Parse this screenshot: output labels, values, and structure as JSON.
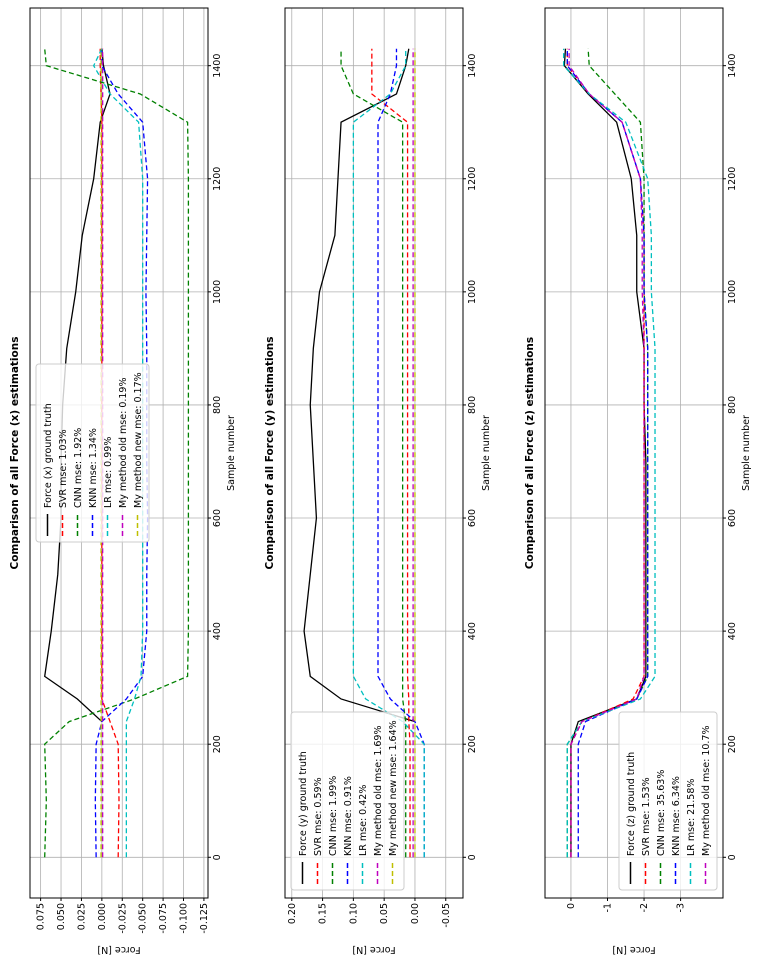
{
  "chart_data": [
    {
      "type": "line",
      "title": "Comparison of all Force (x) estimations",
      "x_label": "Sample number",
      "y_label": "Force [N]",
      "x": [
        0,
        100,
        200,
        240,
        280,
        320,
        400,
        500,
        600,
        700,
        800,
        900,
        1000,
        1100,
        1200,
        1300,
        1350,
        1400,
        1430
      ],
      "xlim": [
        -72,
        1502
      ],
      "xticks": [
        0,
        200,
        400,
        600,
        800,
        1000,
        1200,
        1400
      ],
      "ylim": [
        -0.13,
        0.088
      ],
      "yticks": [
        0.075,
        {
          "value": 0.05,
          "label": "0.050"
        },
        0.025,
        {
          "value": 0,
          "label": "0.000"
        },
        -0.025,
        {
          "value": -0.05,
          "label": "-0.050"
        },
        -0.075,
        {
          "value": -0.1,
          "label": "-0.100"
        },
        -0.125
      ],
      "grid": true,
      "legend": "upper center",
      "series": [
        {
          "name": "Force (x) ground truth",
          "color": "#000000",
          "style": "solid",
          "values": [
            null,
            null,
            null,
            0.0,
            0.03,
            0.07,
            0.062,
            0.054,
            0.05,
            0.05,
            0.048,
            0.043,
            0.032,
            0.024,
            0.01,
            0.002,
            -0.01,
            -0.002,
            0.0
          ]
        },
        {
          "name": "SVR mse: 1.03%",
          "color": "#ff0000",
          "style": "dashed",
          "values": [
            -0.02,
            -0.021,
            -0.02,
            -0.01,
            0.0,
            0.0,
            0.0,
            0.0,
            0.0,
            0.0,
            0.0,
            0.0,
            0.0,
            0.0,
            0.0,
            0.0,
            0.001,
            0.002,
            0.002
          ]
        },
        {
          "name": "CNN mse: 1.92%",
          "color": "#008000",
          "style": "dashed",
          "values": [
            0.07,
            0.068,
            0.07,
            0.04,
            -0.04,
            -0.105,
            -0.106,
            -0.106,
            -0.106,
            -0.106,
            -0.106,
            -0.106,
            -0.106,
            -0.106,
            -0.106,
            -0.105,
            -0.047,
            0.068,
            0.07
          ]
        },
        {
          "name": "KNN mse: 1.34%",
          "color": "#0000ff",
          "style": "dashed",
          "values": [
            0.007,
            0.008,
            0.007,
            0.0,
            -0.03,
            -0.05,
            -0.055,
            -0.055,
            -0.056,
            -0.055,
            -0.055,
            -0.055,
            -0.054,
            -0.055,
            -0.056,
            -0.05,
            -0.02,
            0.0,
            0.0
          ]
        },
        {
          "name": "LR mse: 0.99%",
          "color": "#00bfbf",
          "style": "dashed",
          "values": [
            -0.03,
            -0.03,
            -0.03,
            -0.03,
            -0.04,
            -0.048,
            -0.05,
            -0.05,
            -0.05,
            -0.05,
            -0.05,
            -0.05,
            -0.05,
            -0.05,
            -0.05,
            -0.045,
            -0.01,
            0.01,
            0.0
          ]
        },
        {
          "name": "My method old mse: 0.19%",
          "color": "#bf00bf",
          "style": "dashed",
          "values": [
            -0.001,
            -0.001,
            -0.001,
            -0.001,
            -0.001,
            -0.001,
            -0.001,
            -0.001,
            -0.001,
            -0.001,
            -0.001,
            -0.001,
            -0.001,
            -0.001,
            -0.001,
            -0.001,
            -0.001,
            -0.001,
            -0.001
          ]
        },
        {
          "name": "My method new mse: 0.17%",
          "color": "#bfbf00",
          "style": "dashed",
          "values": [
            0.001,
            0.001,
            0.001,
            0.001,
            0.001,
            0.001,
            0.001,
            0.001,
            0.001,
            0.001,
            0.001,
            0.001,
            0.001,
            0.001,
            0.001,
            0.001,
            0.001,
            0.001,
            0.001
          ]
        }
      ]
    },
    {
      "type": "line",
      "title": "Comparison of all Force (y) estimations",
      "x_label": "Sample number",
      "y_label": "Force [N]",
      "x": [
        0,
        100,
        200,
        240,
        280,
        320,
        400,
        500,
        600,
        700,
        800,
        900,
        1000,
        1100,
        1200,
        1300,
        1350,
        1400,
        1430
      ],
      "xlim": [
        -72,
        1502
      ],
      "xticks": [
        0,
        200,
        400,
        600,
        800,
        1000,
        1200,
        1400
      ],
      "ylim": [
        -0.078,
        0.211
      ],
      "yticks": [
        {
          "value": 0.2,
          "label": "0.20"
        },
        0.15,
        {
          "value": 0.1,
          "label": "0.10"
        },
        0.05,
        {
          "value": 0,
          "label": "0.00"
        },
        -0.05
      ],
      "grid": true,
      "legend": "upper left",
      "series": [
        {
          "name": "Force (y) ground truth",
          "color": "#000000",
          "style": "solid",
          "values": [
            null,
            null,
            null,
            0.0,
            0.12,
            0.17,
            0.18,
            0.17,
            0.16,
            0.165,
            0.17,
            0.165,
            0.155,
            0.13,
            0.125,
            0.12,
            0.03,
            0.015,
            0.01
          ]
        },
        {
          "name": "SVR mse: 0.59%",
          "color": "#ff0000",
          "style": "dashed",
          "values": [
            0.008,
            0.008,
            0.008,
            0.01,
            0.01,
            0.012,
            0.012,
            0.012,
            0.012,
            0.012,
            0.012,
            0.012,
            0.012,
            0.012,
            0.012,
            0.012,
            0.07,
            0.07,
            0.07
          ]
        },
        {
          "name": "CNN mse: 1.99%",
          "color": "#008000",
          "style": "dashed",
          "values": [
            0.015,
            0.015,
            0.015,
            0.015,
            0.02,
            0.02,
            0.02,
            0.02,
            0.02,
            0.02,
            0.02,
            0.02,
            0.02,
            0.02,
            0.02,
            0.02,
            0.1,
            0.12,
            0.12
          ]
        },
        {
          "name": "KNN mse: 0.91%",
          "color": "#0000ff",
          "style": "dashed",
          "values": [
            -0.015,
            -0.015,
            -0.015,
            0.0,
            0.04,
            0.06,
            0.06,
            0.06,
            0.06,
            0.06,
            0.06,
            0.06,
            0.06,
            0.06,
            0.06,
            0.06,
            0.04,
            0.03,
            0.03
          ]
        },
        {
          "name": "LR mse: 0.42%",
          "color": "#00bfbf",
          "style": "dashed",
          "values": [
            -0.015,
            -0.015,
            -0.015,
            0.02,
            0.08,
            0.1,
            0.1,
            0.1,
            0.1,
            0.1,
            0.1,
            0.1,
            0.1,
            0.1,
            0.1,
            0.1,
            0.04,
            0.015,
            0.015
          ]
        },
        {
          "name": "My method old mse: 1.69%",
          "color": "#bf00bf",
          "style": "dashed",
          "values": [
            0.003,
            0.003,
            0.003,
            0.003,
            0.003,
            0.003,
            0.003,
            0.003,
            0.003,
            0.003,
            0.003,
            0.003,
            0.003,
            0.003,
            0.003,
            0.003,
            0.003,
            0.003,
            0.003
          ]
        },
        {
          "name": "My method new mse: 1.64%",
          "color": "#bfbf00",
          "style": "dashed",
          "values": [
            0.0,
            0.0,
            0.0,
            0.0,
            0.0,
            0.0,
            0.0,
            0.0,
            0.0,
            0.0,
            0.0,
            0.0,
            0.0,
            0.0,
            0.0,
            0.0,
            0.0,
            0.0,
            0.0
          ]
        }
      ]
    },
    {
      "type": "line",
      "title": "Comparison of all Force (z) estimations",
      "x_label": "Sample number",
      "y_label": "Force [N]",
      "x": [
        0,
        100,
        200,
        240,
        280,
        320,
        400,
        500,
        600,
        700,
        800,
        900,
        1000,
        1100,
        1200,
        1300,
        1350,
        1400,
        1430
      ],
      "xlim": [
        -72,
        1502
      ],
      "xticks": [
        0,
        200,
        400,
        600,
        800,
        1000,
        1200,
        1400
      ],
      "ylim": [
        -4.16,
        0.71
      ],
      "yticks": [
        0,
        -1,
        -2,
        -3
      ],
      "grid": true,
      "legend": "lower left",
      "series": [
        {
          "name": "Force (z) ground truth",
          "color": "#000000",
          "style": "solid",
          "values": [
            0,
            0,
            0,
            -0.2,
            -1.8,
            -2.05,
            -2.05,
            -2.05,
            -2.05,
            -2.05,
            -2.0,
            -2.0,
            -1.8,
            -1.8,
            -1.65,
            -1.25,
            -0.47,
            0.18,
            0.15
          ]
        },
        {
          "name": "SVR mse: 1.53%",
          "color": "#ff0000",
          "style": "dashed",
          "values": [
            0,
            0,
            0,
            -0.3,
            -1.7,
            -2.0,
            -2.0,
            -2.0,
            -2.0,
            -2.0,
            -2.0,
            -2.0,
            -2.0,
            -2.0,
            -1.9,
            -1.4,
            -0.5,
            0.1,
            0.1
          ]
        },
        {
          "name": "CNN mse: 35.63%",
          "color": "#008000",
          "style": "dashed",
          "values": [
            0.1,
            0.1,
            0.1,
            -0.3,
            -1.8,
            -2.1,
            -2.1,
            -2.1,
            -2.1,
            -2.1,
            -2.1,
            -2.1,
            -2.0,
            -2.0,
            -2.0,
            -1.9,
            -1.2,
            -0.5,
            -0.47
          ]
        },
        {
          "name": "KNN mse: 6.34%",
          "color": "#0000ff",
          "style": "dashed",
          "values": [
            -0.2,
            -0.2,
            -0.2,
            -0.4,
            -1.8,
            -2.1,
            -2.1,
            -2.1,
            -2.1,
            -2.1,
            -2.1,
            -2.1,
            -2.0,
            -2.0,
            -1.9,
            -1.4,
            -0.5,
            0.1,
            0.1
          ]
        },
        {
          "name": "LR mse: 21.58%",
          "color": "#00bfbf",
          "style": "dashed",
          "values": [
            0.1,
            0.1,
            0.1,
            -0.3,
            -1.9,
            -2.3,
            -2.3,
            -2.3,
            -2.3,
            -2.3,
            -2.3,
            -2.3,
            -2.2,
            -2.2,
            -2.1,
            -1.5,
            -0.5,
            0.2,
            0.2
          ]
        },
        {
          "name": "My method old mse: 10.7%",
          "color": "#bf00bf",
          "style": "dashed",
          "values": [
            0,
            0,
            0,
            -0.3,
            -1.8,
            -2.0,
            -2.0,
            -2.0,
            -2.0,
            -2.0,
            -2.0,
            -2.0,
            -1.95,
            -1.95,
            -1.9,
            -1.4,
            -0.5,
            0.05,
            0.05
          ]
        }
      ]
    }
  ]
}
